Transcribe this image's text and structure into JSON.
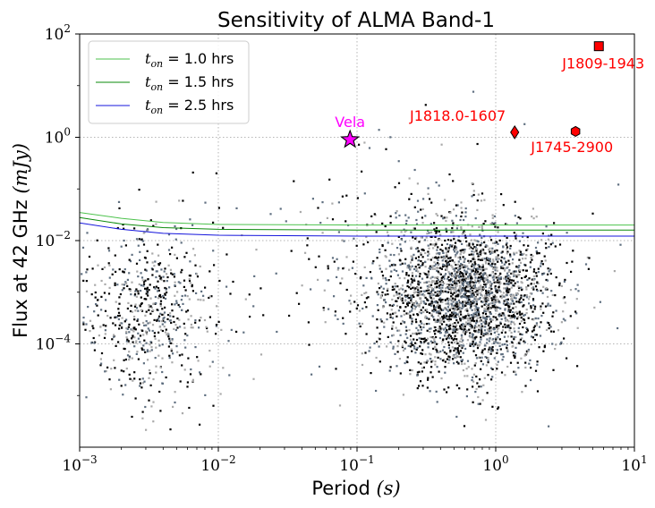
{
  "chart_data": {
    "type": "scatter",
    "title": "Sensitivity of ALMA Band-1",
    "xlabel": {
      "text": "Period ",
      "var": "(s)"
    },
    "ylabel": {
      "text": "Flux at 42 GHz ",
      "var": "(mJy)"
    },
    "x_scale": "log",
    "y_scale": "log",
    "xlim": [
      0.001,
      10
    ],
    "ylim": [
      1e-06,
      100
    ],
    "grid": true,
    "legend_position": "top-left",
    "x_ticks": [
      {
        "value": 0.001,
        "base": "10",
        "exp": "−3"
      },
      {
        "value": 0.01,
        "base": "10",
        "exp": "−2"
      },
      {
        "value": 0.1,
        "base": "10",
        "exp": "−1"
      },
      {
        "value": 1,
        "base": "10",
        "exp": "0"
      },
      {
        "value": 10,
        "base": "10",
        "exp": "1"
      }
    ],
    "y_ticks": [
      {
        "value": 0.0001,
        "base": "10",
        "exp": "−4"
      },
      {
        "value": 0.01,
        "base": "10",
        "exp": "−2"
      },
      {
        "value": 1,
        "base": "10",
        "exp": "0"
      },
      {
        "value": 100,
        "base": "10",
        "exp": "2"
      }
    ],
    "sensitivity_curves": [
      {
        "name_var": "t",
        "name_sub": "on",
        "name_rest": " = 1.0 hrs",
        "color": "#4cc24c",
        "points": [
          [
            0.001,
            0.035
          ],
          [
            0.002,
            0.027
          ],
          [
            0.004,
            0.0225
          ],
          [
            0.01,
            0.0205
          ],
          [
            0.1,
            0.02
          ],
          [
            10,
            0.02
          ]
        ]
      },
      {
        "name_var": "t",
        "name_sub": "on",
        "name_rest": " = 1.5 hrs",
        "color": "#0a8a0a",
        "points": [
          [
            0.001,
            0.028
          ],
          [
            0.002,
            0.021
          ],
          [
            0.004,
            0.0178
          ],
          [
            0.01,
            0.0165
          ],
          [
            0.1,
            0.016
          ],
          [
            10,
            0.016
          ]
        ]
      },
      {
        "name_var": "t",
        "name_sub": "on",
        "name_rest": " = 2.5 hrs",
        "color": "#1414dc",
        "points": [
          [
            0.001,
            0.022
          ],
          [
            0.002,
            0.0165
          ],
          [
            0.004,
            0.0138
          ],
          [
            0.01,
            0.0127
          ],
          [
            0.1,
            0.0122
          ],
          [
            10,
            0.0122
          ]
        ]
      }
    ],
    "highlighted_sources": [
      {
        "name": "Vela",
        "period": 0.089,
        "flux": 0.9,
        "marker": "star",
        "color": "#ff00ff",
        "label_color": "#ff00ff",
        "label_anchor": "above"
      },
      {
        "name": "J1818.0-1607",
        "period": 1.37,
        "flux": 1.25,
        "marker": "diamond",
        "color": "#ff0000",
        "label_color": "#ff0000",
        "label_anchor": "above-left"
      },
      {
        "name": "J1809-1943",
        "period": 5.54,
        "flux": 58,
        "marker": "square",
        "color": "#ff0000",
        "label_color": "#ff0000",
        "label_anchor": "below"
      },
      {
        "name": "J1745-2900",
        "period": 3.76,
        "flux": 1.3,
        "marker": "hexagon",
        "color": "#ff0000",
        "label_color": "#ff0000",
        "label_anchor": "below"
      }
    ],
    "pulsar_population": {
      "note_colors": [
        "#000000",
        "#5f6f80",
        "#aaaaaa"
      ],
      "clusters": [
        {
          "count": 650,
          "period_log_mean": -2.5,
          "period_log_sd": 0.24,
          "flux_log_mean": -3.4,
          "flux_log_sd": 0.85
        },
        {
          "count": 2600,
          "period_log_mean": -0.2,
          "period_log_sd": 0.3,
          "flux_log_mean": -3.1,
          "flux_log_sd": 0.75
        },
        {
          "count": 280,
          "period_log_mean": -0.8,
          "period_log_sd": 0.55,
          "flux_log_mean": -2.4,
          "flux_log_sd": 1.1
        }
      ]
    }
  }
}
